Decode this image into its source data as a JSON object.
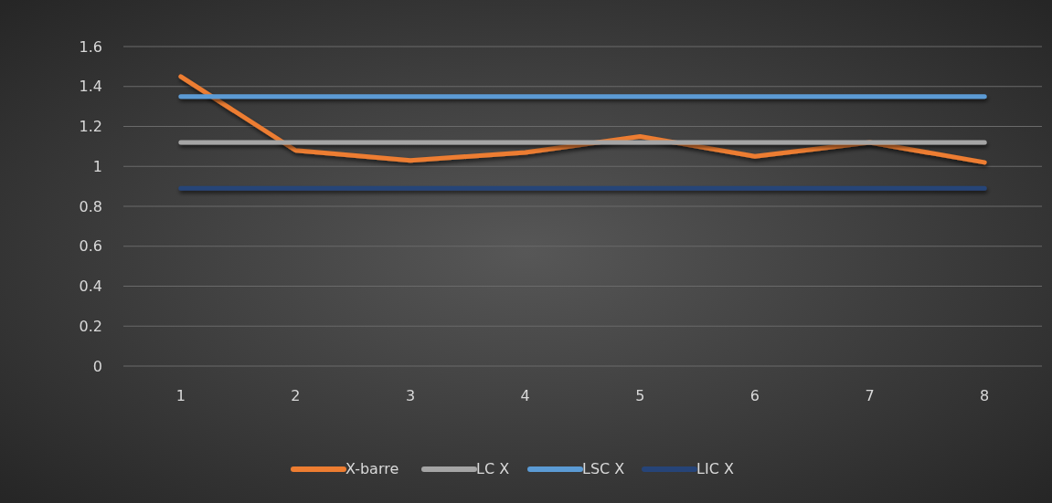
{
  "chart_data": {
    "type": "line",
    "categories": [
      "1",
      "2",
      "3",
      "4",
      "5",
      "6",
      "7",
      "8"
    ],
    "series": [
      {
        "name": "X-barre",
        "color": "#ed7d31",
        "values": [
          1.45,
          1.08,
          1.03,
          1.07,
          1.15,
          1.05,
          1.12,
          1.02
        ]
      },
      {
        "name": "LC X",
        "color": "#a5a5a5",
        "values": [
          1.12,
          1.12,
          1.12,
          1.12,
          1.12,
          1.12,
          1.12,
          1.12
        ]
      },
      {
        "name": "LSC X",
        "color": "#5b9bd5",
        "values": [
          1.35,
          1.35,
          1.35,
          1.35,
          1.35,
          1.35,
          1.35,
          1.35
        ]
      },
      {
        "name": "LIC X",
        "color": "#264478",
        "values": [
          0.89,
          0.89,
          0.89,
          0.89,
          0.89,
          0.89,
          0.89,
          0.89
        ]
      }
    ],
    "ylim": [
      0,
      1.6
    ],
    "yticks": [
      0,
      0.2,
      0.4,
      0.6,
      0.8,
      1,
      1.2,
      1.4,
      1.6
    ],
    "grid": "y",
    "legend": "bottom",
    "marker": "none",
    "line_style": "solid"
  }
}
